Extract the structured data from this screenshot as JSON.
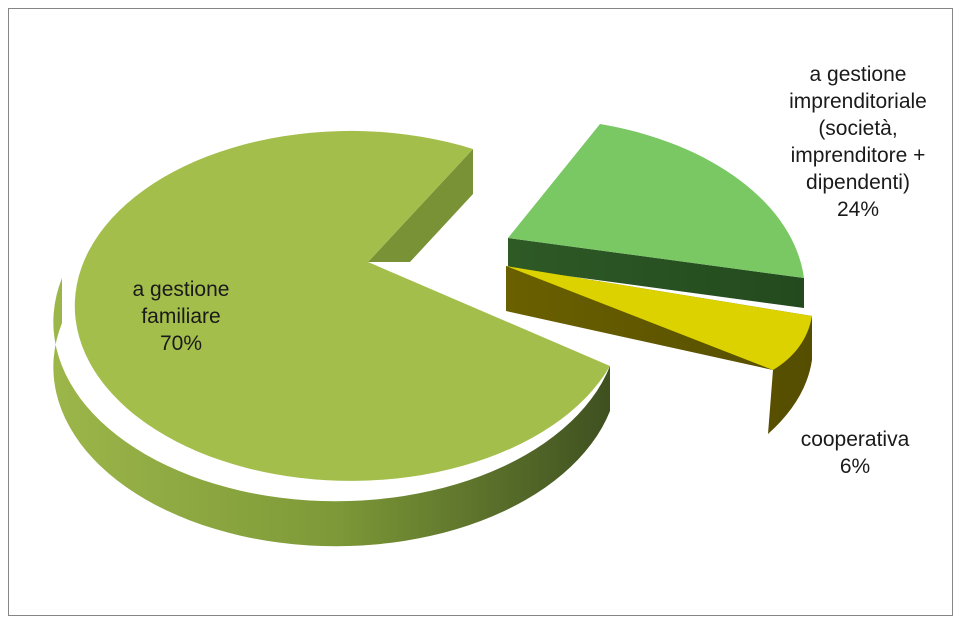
{
  "chart_data": {
    "type": "pie",
    "title": "",
    "slices": [
      {
        "name": "a gestione familiare",
        "value": 70,
        "label": "70%",
        "color": "#a4be4c",
        "label_lines": [
          "a gestione",
          "familiare",
          "70%"
        ]
      },
      {
        "name": "a gestione imprenditoriale (società, imprenditore + dipendenti)",
        "value": 24,
        "label": "24%",
        "color": "#79c864",
        "label_lines": [
          "a gestione",
          "imprenditoriale",
          "(società,",
          "imprenditore +",
          "dipendenti)",
          "24%"
        ]
      },
      {
        "name": "cooperativa",
        "value": 6,
        "label": "6%",
        "color": "#dcd200",
        "label_lines": [
          "cooperativa",
          "6%"
        ]
      }
    ],
    "style": "3d-exploded",
    "legend": "none"
  }
}
